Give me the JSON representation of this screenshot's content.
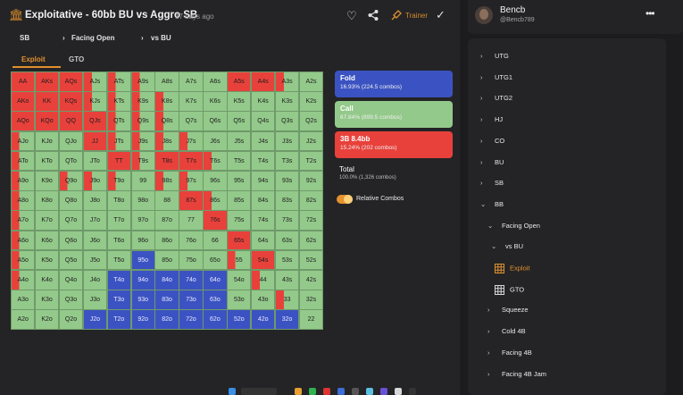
{
  "header": {
    "title": "Exploitative - 60bb BU vs Aggro SB",
    "time_ago": "17 days ago",
    "trainer_label": "Trainer"
  },
  "breadcrumbs": [
    "SB",
    "Facing Open",
    "vs BU"
  ],
  "tabs": [
    {
      "label": "Exploit",
      "active": true
    },
    {
      "label": "GTO",
      "active": false
    }
  ],
  "colors": {
    "fold": "#3b53c2",
    "call": "#93c98a",
    "raise": "#e8413b",
    "accent": "#e0902e"
  },
  "matrix": {
    "rows": [
      [
        "AA",
        "AKs",
        "AQs",
        "AJs",
        "ATs",
        "A9s",
        "A8s",
        "A7s",
        "A6s",
        "A5s",
        "A4s",
        "A3s",
        "A2s"
      ],
      [
        "AKo",
        "KK",
        "KQs",
        "KJs",
        "KTs",
        "K9s",
        "K8s",
        "K7s",
        "K6s",
        "K5s",
        "K4s",
        "K3s",
        "K2s"
      ],
      [
        "AQo",
        "KQo",
        "QQ",
        "QJs",
        "QTs",
        "Q9s",
        "Q8s",
        "Q7s",
        "Q6s",
        "Q5s",
        "Q4s",
        "Q3s",
        "Q2s"
      ],
      [
        "AJo",
        "KJo",
        "QJo",
        "JJ",
        "JTs",
        "J9s",
        "J8s",
        "J7s",
        "J6s",
        "J5s",
        "J4s",
        "J3s",
        "J2s"
      ],
      [
        "ATo",
        "KTo",
        "QTo",
        "JTo",
        "TT",
        "T9s",
        "T8s",
        "T7s",
        "T6s",
        "T5s",
        "T4s",
        "T3s",
        "T2s"
      ],
      [
        "A9o",
        "K9o",
        "Q9o",
        "J9o",
        "T9o",
        "99",
        "98s",
        "97s",
        "96s",
        "95s",
        "94s",
        "93s",
        "92s"
      ],
      [
        "A8o",
        "K8o",
        "Q8o",
        "J8o",
        "T8o",
        "98o",
        "88",
        "87s",
        "86s",
        "85s",
        "84s",
        "83s",
        "82s"
      ],
      [
        "A7o",
        "K7o",
        "Q7o",
        "J7o",
        "T7o",
        "97o",
        "87o",
        "77",
        "76s",
        "75s",
        "74s",
        "73s",
        "72s"
      ],
      [
        "A6o",
        "K6o",
        "Q6o",
        "J6o",
        "T6o",
        "96o",
        "86o",
        "76o",
        "66",
        "65s",
        "64s",
        "63s",
        "62s"
      ],
      [
        "A5o",
        "K5o",
        "Q5o",
        "J5o",
        "T5o",
        "95o",
        "85o",
        "75o",
        "65o",
        "55",
        "54s",
        "53s",
        "52s"
      ],
      [
        "A4o",
        "K4o",
        "Q4o",
        "J4o",
        "T4o",
        "94o",
        "84o",
        "74o",
        "64o",
        "54o",
        "44",
        "43s",
        "42s"
      ],
      [
        "A3o",
        "K3o",
        "Q3o",
        "J3o",
        "T3o",
        "93o",
        "83o",
        "73o",
        "63o",
        "53o",
        "43o",
        "33",
        "32s"
      ],
      [
        "A2o",
        "K2o",
        "Q2o",
        "J2o",
        "T2o",
        "92o",
        "82o",
        "72o",
        "62o",
        "52o",
        "42o",
        "32o",
        "22"
      ]
    ]
  },
  "actions": [
    {
      "name": "Fold",
      "value": "16.93% (224.5 combos)"
    },
    {
      "name": "Call",
      "value": "67.84% (899.5 combos)"
    },
    {
      "name": "3B 8.4bb",
      "value": "15.24% (202 combos)"
    }
  ],
  "total": {
    "label": "Total",
    "value": "100.0% (1,326 combos)"
  },
  "relative_combos_label": "Relative Combos",
  "profile": {
    "name": "Bencb",
    "username": "@Bencb789"
  },
  "tree": [
    {
      "label": "UTG",
      "level": 0,
      "icon": "chevron-right-icon"
    },
    {
      "label": "UTG1",
      "level": 0,
      "icon": "chevron-right-icon"
    },
    {
      "label": "UTG2",
      "level": 0,
      "icon": "chevron-right-icon"
    },
    {
      "label": "HJ",
      "level": 0,
      "icon": "chevron-right-icon"
    },
    {
      "label": "CO",
      "level": 0,
      "icon": "chevron-right-icon"
    },
    {
      "label": "BU",
      "level": 0,
      "icon": "chevron-right-icon"
    },
    {
      "label": "SB",
      "level": 0,
      "icon": "chevron-right-icon"
    },
    {
      "label": "BB",
      "level": 0,
      "icon": "chevron-down-icon"
    },
    {
      "label": "Facing Open",
      "level": 1,
      "icon": "chevron-down-icon"
    },
    {
      "label": "vs BU",
      "level": 2,
      "icon": "chevron-down-icon"
    },
    {
      "label": "Exploit",
      "level": 3,
      "icon": "grid-icon-active"
    },
    {
      "label": "GTO",
      "level": 3,
      "icon": "grid-icon"
    },
    {
      "label": "Squeeze",
      "level": 1,
      "icon": "chevron-right-icon"
    },
    {
      "label": "Cold 4B",
      "level": 1,
      "icon": "chevron-right-icon"
    },
    {
      "label": "Facing 4B",
      "level": 1,
      "icon": "chevron-right-icon"
    },
    {
      "label": "Facing 4B Jam",
      "level": 1,
      "icon": "chevron-right-icon"
    }
  ]
}
